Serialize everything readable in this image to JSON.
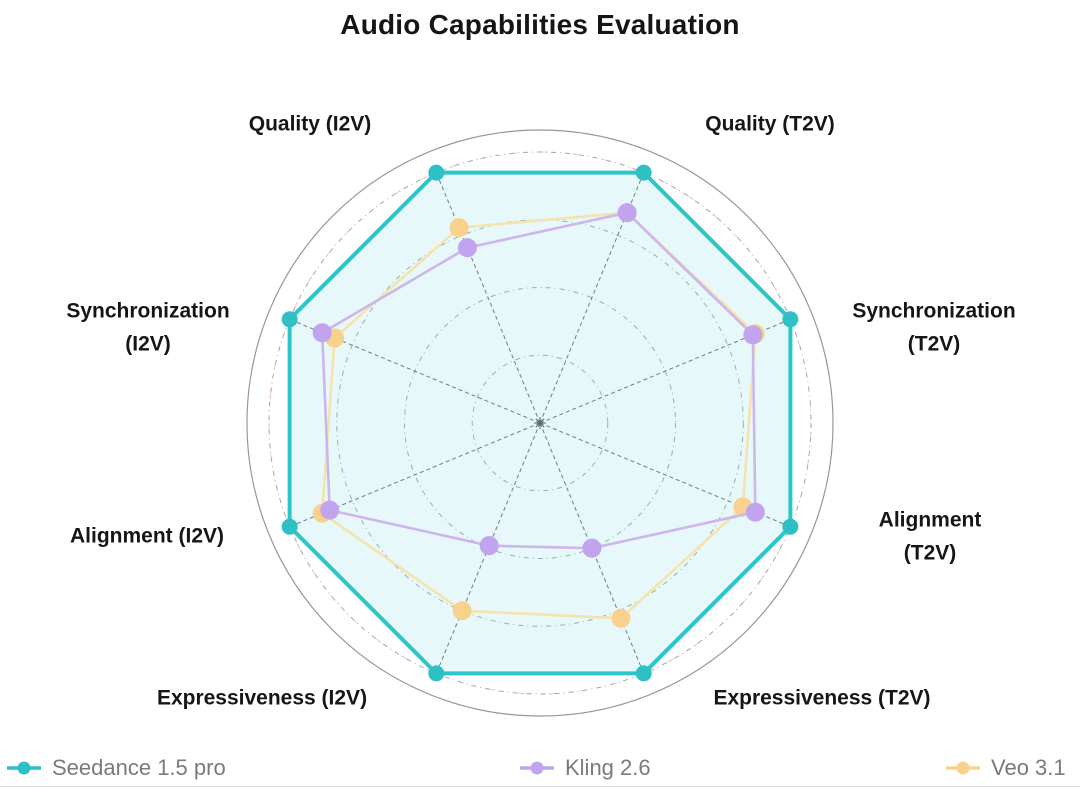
{
  "title": "Audio Capabilities Evaluation",
  "chart_data": {
    "type": "radar",
    "title": "Audio Capabilities Evaluation",
    "axes": [
      "Quality (I2V)",
      "Quality (T2V)",
      "Synchronization\n(T2V)",
      "Alignment (T2V)",
      "Expressiveness (T2V)",
      "Expressiveness (I2V)",
      "Alignment (I2V)",
      "Synchronization\n(I2V)"
    ],
    "scale": {
      "min": 0,
      "max": 1.0,
      "rings": [
        0.25,
        0.5,
        0.75,
        1.0
      ]
    },
    "grid": "dashed concentric circles with dashed spokes, solid outer circle",
    "legend_position": "bottom",
    "series": [
      {
        "name": "Seedance 1.5 pro",
        "marker_color": "#2fc0c6",
        "line_color": "#2cc5c9",
        "fill_color": "rgba(116,214,220,0.18)",
        "values": [
          1.0,
          1.0,
          1.0,
          1.0,
          1.0,
          1.0,
          1.0,
          1.0
        ]
      },
      {
        "name": "Kling 2.6",
        "marker_color": "#c2a3ee",
        "line_color": "#cdb6ec",
        "fill_color": "none",
        "values": [
          0.7,
          0.84,
          0.85,
          0.86,
          0.5,
          0.49,
          0.84,
          0.87
        ]
      },
      {
        "name": "Veo 3.1",
        "marker_color": "#f8d28c",
        "line_color": "#f5e3ab",
        "fill_color": "none",
        "values": [
          0.78,
          0.84,
          0.86,
          0.81,
          0.78,
          0.75,
          0.87,
          0.82
        ]
      }
    ]
  }
}
